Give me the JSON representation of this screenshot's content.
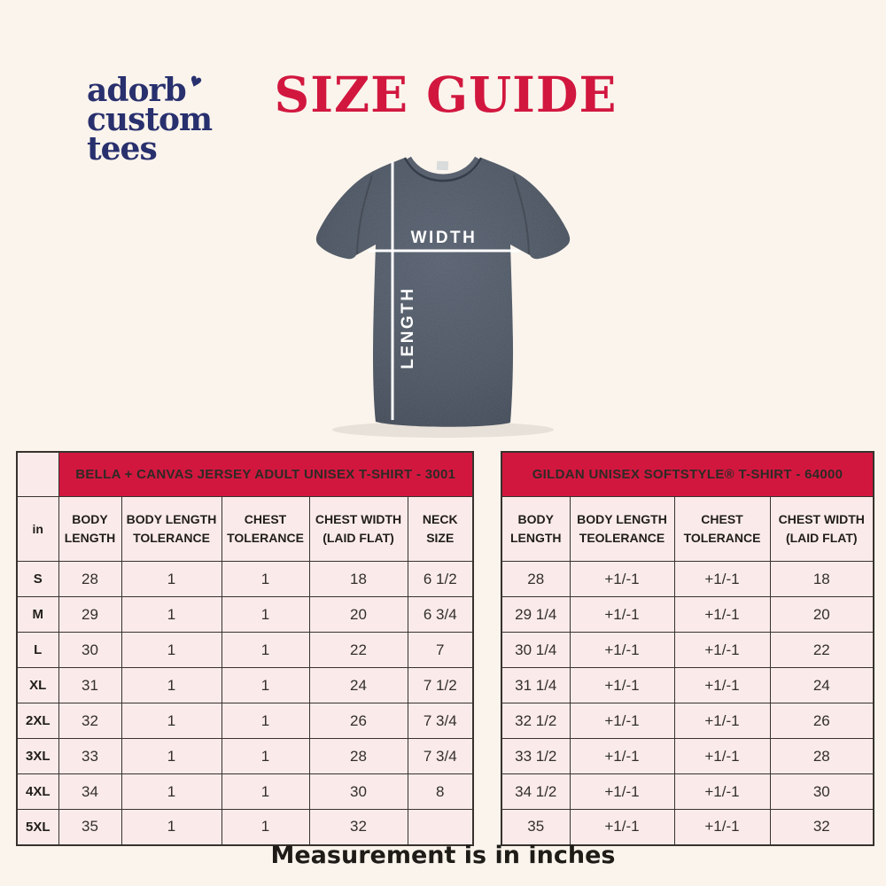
{
  "colors": {
    "background": "#FAF4EC",
    "accent_red": "#D2173F",
    "logo_navy": "#29306E",
    "cell_pink": "#FAEBEA",
    "shirt_gray": "#49525F"
  },
  "logo": {
    "line1": "adorb",
    "line2": "custom",
    "line3": "tees",
    "heart_icon": "♥"
  },
  "title": "SIZE GUIDE",
  "shirt": {
    "width_label": "WIDTH",
    "length_label": "LENGTH"
  },
  "tables": [
    {
      "banner": "BELLA + CANVAS JERSEY ADULT UNISEX T-SHIRT - 3001",
      "unit_label": "in",
      "columns": [
        "BODY LENGTH",
        "BODY LENGTH TOLERANCE",
        "CHEST TOLERANCE",
        "CHEST WIDTH (LAID FLAT)",
        "NECK SIZE"
      ],
      "rows": [
        {
          "size": "S",
          "values": [
            "28",
            "1",
            "1",
            "18",
            "6 1/2"
          ]
        },
        {
          "size": "M",
          "values": [
            "29",
            "1",
            "1",
            "20",
            "6 3/4"
          ]
        },
        {
          "size": "L",
          "values": [
            "30",
            "1",
            "1",
            "22",
            "7"
          ]
        },
        {
          "size": "XL",
          "values": [
            "31",
            "1",
            "1",
            "24",
            "7 1/2"
          ]
        },
        {
          "size": "2XL",
          "values": [
            "32",
            "1",
            "1",
            "26",
            "7 3/4"
          ]
        },
        {
          "size": "3XL",
          "values": [
            "33",
            "1",
            "1",
            "28",
            "7 3/4"
          ]
        },
        {
          "size": "4XL",
          "values": [
            "34",
            "1",
            "1",
            "30",
            "8"
          ]
        },
        {
          "size": "5XL",
          "values": [
            "35",
            "1",
            "1",
            "32",
            ""
          ]
        }
      ]
    },
    {
      "banner": "GILDAN UNISEX SOFTSTYLE® T-SHIRT - 64000",
      "columns": [
        "BODY LENGTH",
        "BODY LENGTH TEOLERANCE",
        "CHEST TOLERANCE",
        "CHEST WIDTH (LAID FLAT)"
      ],
      "rows": [
        {
          "values": [
            "28",
            "+1/-1",
            "+1/-1",
            "18"
          ]
        },
        {
          "values": [
            "29 1/4",
            "+1/-1",
            "+1/-1",
            "20"
          ]
        },
        {
          "values": [
            "30 1/4",
            "+1/-1",
            "+1/-1",
            "22"
          ]
        },
        {
          "values": [
            "31 1/4",
            "+1/-1",
            "+1/-1",
            "24"
          ]
        },
        {
          "values": [
            "32 1/2",
            "+1/-1",
            "+1/-1",
            "26"
          ]
        },
        {
          "values": [
            "33 1/2",
            "+1/-1",
            "+1/-1",
            "28"
          ]
        },
        {
          "values": [
            "34 1/2",
            "+1/-1",
            "+1/-1",
            "30"
          ]
        },
        {
          "values": [
            "35",
            "+1/-1",
            "+1/-1",
            "32"
          ]
        }
      ]
    }
  ],
  "footer": "Measurement is in inches"
}
